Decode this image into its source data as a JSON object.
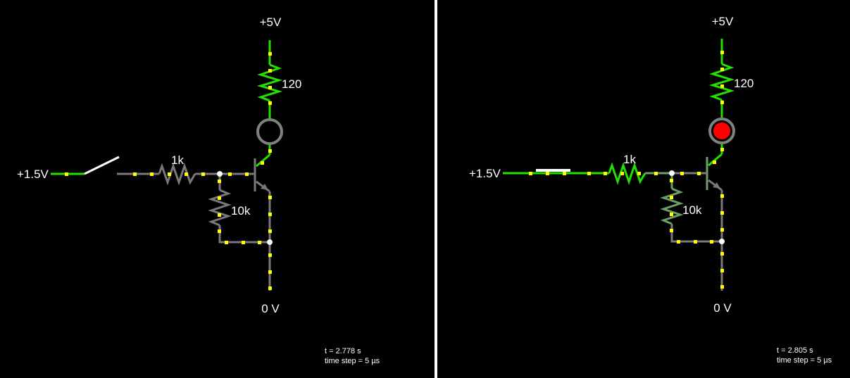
{
  "colors": {
    "hot": "#22e000",
    "ground": "#7d7878",
    "warm": "#6a9f68",
    "current_dot": "#ffff00",
    "led_on": "#ff0000",
    "led_ring": "#808080"
  },
  "circuits": [
    {
      "switch_state": "open",
      "led_state": "off",
      "labels": {
        "supply": "+5V",
        "input": "+1.5V",
        "r_collector": "120",
        "r_base": "1k",
        "r_pulldown": "10k",
        "ground": "0 V"
      },
      "status": {
        "time": "t = 2.778 s",
        "step": "time step = 5 µs"
      }
    },
    {
      "switch_state": "closed",
      "led_state": "on",
      "labels": {
        "supply": "+5V",
        "input": "+1.5V",
        "r_collector": "120",
        "r_base": "1k",
        "r_pulldown": "10k",
        "ground": "0 V"
      },
      "status": {
        "time": "t = 2.805 s",
        "step": "time step = 5 µs"
      }
    }
  ]
}
